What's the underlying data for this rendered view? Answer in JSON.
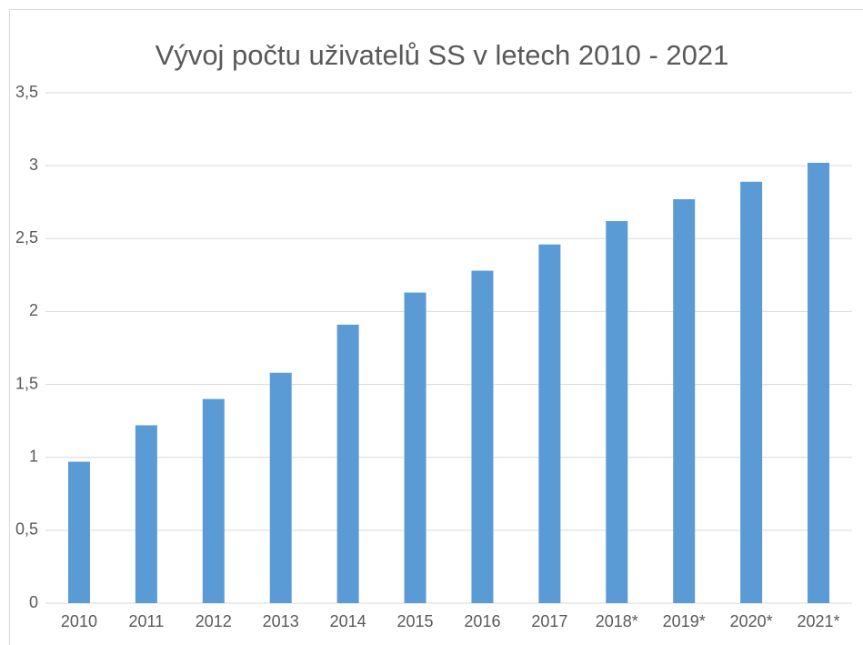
{
  "chart_data": {
    "type": "bar",
    "title": "Vývoj počtu uživatelů SS v letech 2010 - 2021",
    "categories": [
      "2010",
      "2011",
      "2012",
      "2013",
      "2014",
      "2015",
      "2016",
      "2017",
      "2018*",
      "2019*",
      "2020*",
      "2021*"
    ],
    "values": [
      0.97,
      1.22,
      1.4,
      1.58,
      1.91,
      2.13,
      2.28,
      2.46,
      2.62,
      2.77,
      2.89,
      3.02
    ],
    "color": "#5b9bd5",
    "ylim": [
      0,
      3.5
    ],
    "yticks": [
      0,
      {
        "value": 0.5,
        "label": "0,5"
      },
      1,
      {
        "value": 1.5,
        "label": "1,5"
      },
      2,
      {
        "value": 2.5,
        "label": "2,5"
      },
      3,
      {
        "value": 3.5,
        "label": "3,5"
      }
    ],
    "grid": true
  }
}
